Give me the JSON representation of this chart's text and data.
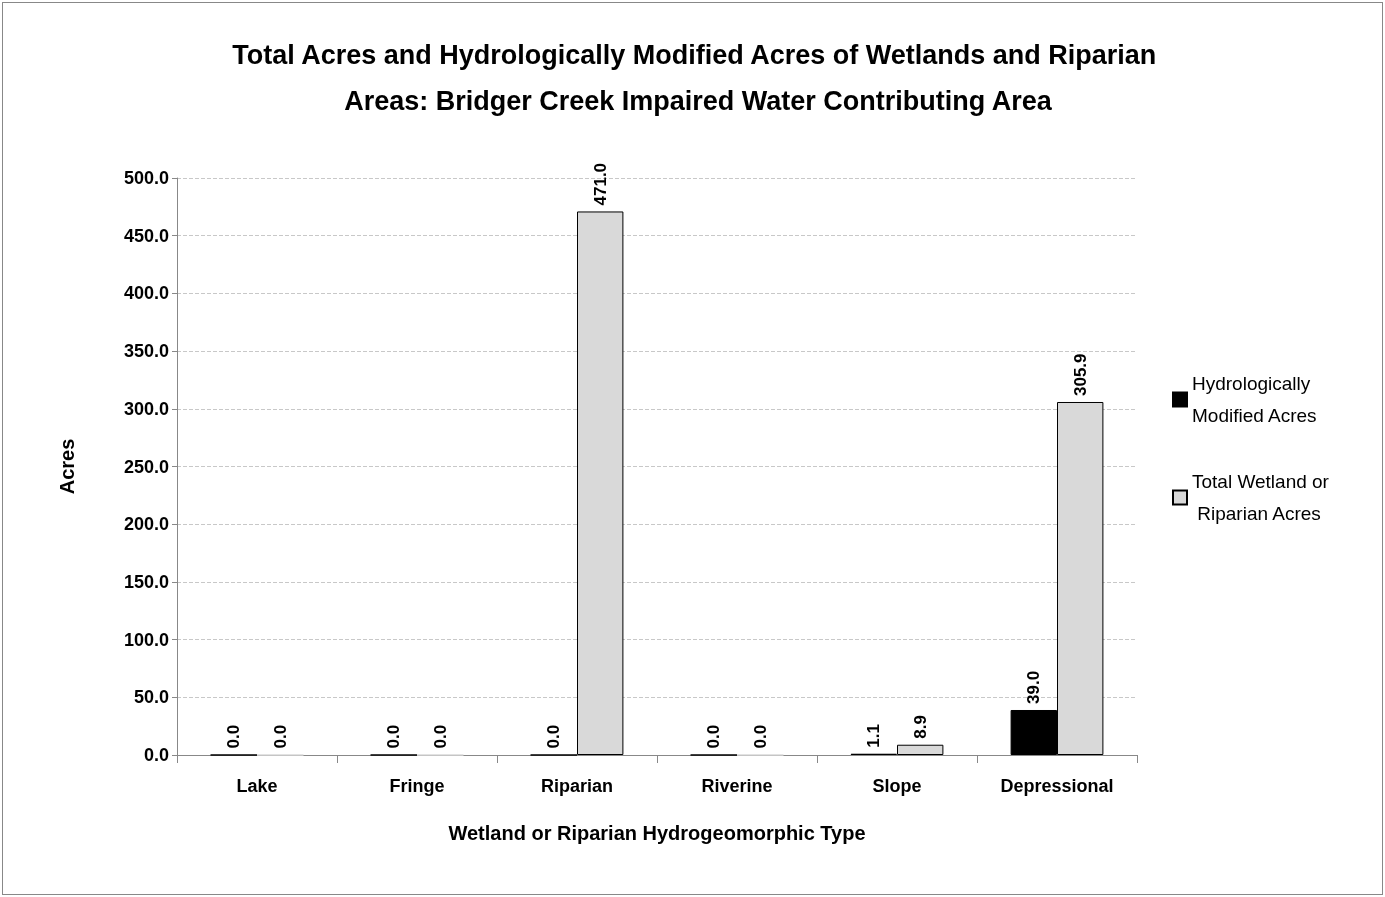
{
  "chart_data": {
    "type": "bar",
    "title": "Total Acres and Hydrologically Modified Acres of Wetlands and Riparian Areas: Bridger Creek Impaired Water Contributing Area",
    "xlabel": "Wetland or Riparian Hydrogeomorphic Type",
    "ylabel": "Acres",
    "categories": [
      "Lake",
      "Fringe",
      "Riparian",
      "Riverine",
      "Slope",
      "Depressional"
    ],
    "series": [
      {
        "name": "Hydrologically Modified Acres",
        "color": "#000000",
        "values": [
          0,
          0,
          0,
          0,
          1.1,
          39.0
        ],
        "value_labels": [
          "0.0",
          "0.0",
          "0.0",
          "0.0",
          "1.1",
          "39.0"
        ]
      },
      {
        "name": "Total Wetland or Riparian Acres",
        "color": "#d9d9d9",
        "values": [
          0,
          0,
          471.0,
          0,
          8.9,
          305.9
        ],
        "value_labels": [
          "0.0",
          "0.0",
          "471.0",
          "0.0",
          "8.9",
          "305.9"
        ]
      }
    ],
    "ylim": [
      0,
      500
    ],
    "yticks": [
      {
        "value": 0,
        "label": "0.0"
      },
      {
        "value": 50,
        "label": "50.0"
      },
      {
        "value": 100,
        "label": "100.0"
      },
      {
        "value": 150,
        "label": "150.0"
      },
      {
        "value": 200,
        "label": "200.0"
      },
      {
        "value": 250,
        "label": "250.0"
      },
      {
        "value": 300,
        "label": "300.0"
      },
      {
        "value": 350,
        "label": "350.0"
      },
      {
        "value": 400,
        "label": "400.0"
      },
      {
        "value": 450,
        "label": "450.0"
      },
      {
        "value": 500,
        "label": "500.0"
      }
    ],
    "grid": "y",
    "legend": "right"
  }
}
